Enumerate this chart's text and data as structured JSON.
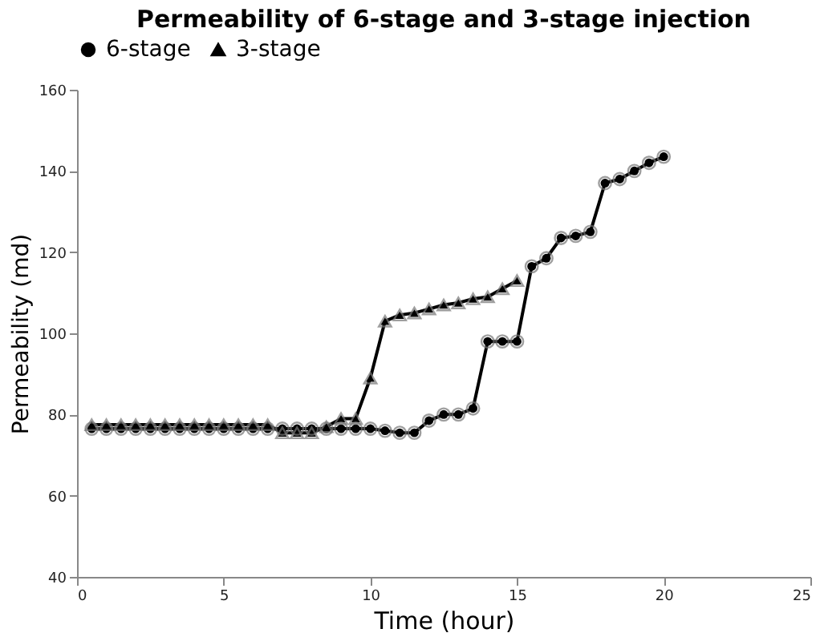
{
  "chart_data": {
    "type": "line",
    "title": "Permeability of  6-stage and 3-stage injection",
    "xlabel": "Time (hour)",
    "ylabel": "Permeability (md)",
    "xlim": [
      0,
      25
    ],
    "xticks": [
      0,
      5,
      10,
      15,
      20,
      25
    ],
    "ylim": [
      40,
      160
    ],
    "yticks": [
      40,
      60,
      80,
      100,
      120,
      140,
      160
    ],
    "grid": false,
    "legend": "top",
    "line_style": "solid",
    "series": [
      {
        "name": "6-stage",
        "color": "#000000",
        "marker": "circle",
        "x": [
          0.5,
          1,
          1.5,
          2,
          2.5,
          3,
          3.5,
          4,
          4.5,
          5,
          5.5,
          6,
          6.5,
          7,
          7.5,
          8,
          8.5,
          9,
          9.5,
          10,
          10.5,
          11,
          11.5,
          12,
          12.5,
          13,
          13.5,
          14,
          14.5,
          15,
          15.5,
          16,
          16.5,
          17,
          17.5,
          18,
          18.5,
          19,
          19.5,
          20
        ],
        "values": [
          76.5,
          76.5,
          76.5,
          76.5,
          76.5,
          76.5,
          76.5,
          76.5,
          76.5,
          76.5,
          76.5,
          76.5,
          76.5,
          76.5,
          76.5,
          76.5,
          76.5,
          76.5,
          76.5,
          76.5,
          76,
          75.5,
          75.5,
          78.5,
          80,
          80,
          81.5,
          98,
          98,
          98,
          116.5,
          118.5,
          123.5,
          124,
          125,
          137,
          138,
          140,
          142,
          143.5
        ]
      },
      {
        "name": "3-stage",
        "color": "#000000",
        "marker": "triangle",
        "x": [
          0.5,
          1,
          1.5,
          2,
          2.5,
          3,
          3.5,
          4,
          4.5,
          5,
          5.5,
          6,
          6.5,
          7,
          7.5,
          8,
          8.5,
          9,
          9.5,
          10,
          10.5,
          11,
          11.5,
          12,
          12.5,
          13,
          13.5,
          14,
          14.5,
          15
        ],
        "values": [
          77.5,
          77.5,
          77.5,
          77.5,
          77.5,
          77.5,
          77.5,
          77.5,
          77.5,
          77.5,
          77.5,
          77.5,
          77.5,
          75.5,
          75.5,
          75.5,
          77,
          79,
          79,
          89,
          103,
          104.5,
          105,
          106,
          107,
          107.5,
          108.5,
          109,
          111,
          113
        ]
      }
    ]
  }
}
